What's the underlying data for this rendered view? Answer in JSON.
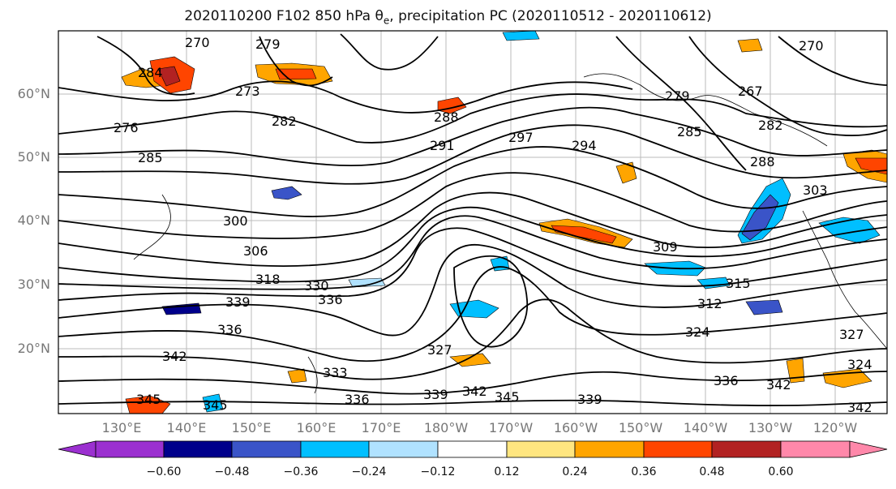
{
  "title": {
    "prefix": "2020110200 F102 850 hPa ",
    "symbol": "θ",
    "subscript": "e",
    "suffix": ", precipitation PC (2020110512 - 2020110612)"
  },
  "axes": {
    "lat_labels": [
      "60°N",
      "50°N",
      "40°N",
      "30°N",
      "20°N"
    ],
    "lon_labels": [
      "130°E",
      "140°E",
      "150°E",
      "160°E",
      "170°E",
      "180°W",
      "170°W",
      "160°W",
      "150°W",
      "140°W",
      "130°W",
      "120°W"
    ]
  },
  "contour_labels": [
    "270",
    "279",
    "270",
    "284",
    "273",
    "267",
    "276",
    "282",
    "282",
    "279",
    "288",
    "285",
    "291",
    "297",
    "294",
    "285",
    "288",
    "303",
    "300",
    "306",
    "309",
    "315",
    "318",
    "330",
    "312",
    "339",
    "336",
    "336",
    "324",
    "342",
    "327",
    "327",
    "336",
    "333",
    "324",
    "342",
    "345",
    "345",
    "336",
    "339",
    "342",
    "345",
    "339",
    "342"
  ],
  "colorbar": {
    "ticks": [
      "−0.60",
      "−0.48",
      "−0.36",
      "−0.24",
      "−0.12",
      "0.12",
      "0.24",
      "0.36",
      "0.48",
      "0.60"
    ],
    "colors": [
      "#9b30d0",
      "#00008b",
      "#3a54c8",
      "#00bfff",
      "#b0e2ff",
      "#ffffff",
      "#ffe680",
      "#ffa500",
      "#ff4500",
      "#b22222",
      "#ff88aa"
    ]
  }
}
